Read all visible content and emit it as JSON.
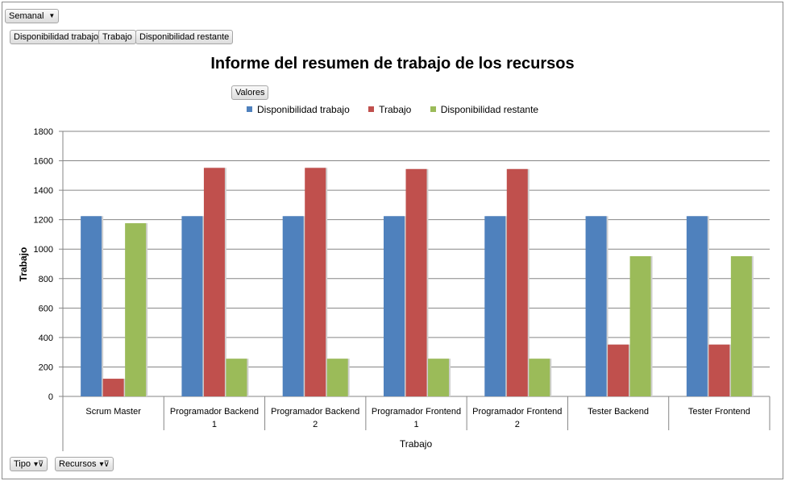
{
  "filters": {
    "report_filter": "Semanal",
    "value_fields": [
      "Disponibilidad trabajo",
      "Trabajo",
      "Disponibilidad restante"
    ],
    "values_button": "Valores",
    "axis_fields": [
      "Tipo",
      "Recursos"
    ]
  },
  "colors": {
    "series1": "#4f81bd",
    "series2": "#c0504d",
    "series3": "#9bbb59"
  },
  "chart_data": {
    "type": "bar",
    "title": "Informe del resumen de trabajo de los recursos",
    "xlabel": "Trabajo",
    "ylabel": "Trabajo",
    "ylim": [
      0,
      1800
    ],
    "yticks": [
      0,
      200,
      400,
      600,
      800,
      1000,
      1200,
      1400,
      1600,
      1800
    ],
    "grid": true,
    "legend": "top",
    "categories": [
      [
        "Scrum Master"
      ],
      [
        "Programador Backend",
        "1"
      ],
      [
        "Programador Backend",
        "2"
      ],
      [
        "Programador Frontend",
        "1"
      ],
      [
        "Programador Frontend",
        "2"
      ],
      [
        "Tester Backend"
      ],
      [
        "Tester Frontend"
      ]
    ],
    "series": [
      {
        "name": "Disponibilidad trabajo",
        "values": [
          1224,
          1224,
          1224,
          1224,
          1224,
          1224,
          1224
        ]
      },
      {
        "name": "Trabajo",
        "values": [
          120,
          1552,
          1552,
          1544,
          1544,
          352,
          352
        ]
      },
      {
        "name": "Disponibilidad restante",
        "values": [
          1176,
          256,
          256,
          256,
          256,
          952,
          952
        ]
      }
    ]
  }
}
